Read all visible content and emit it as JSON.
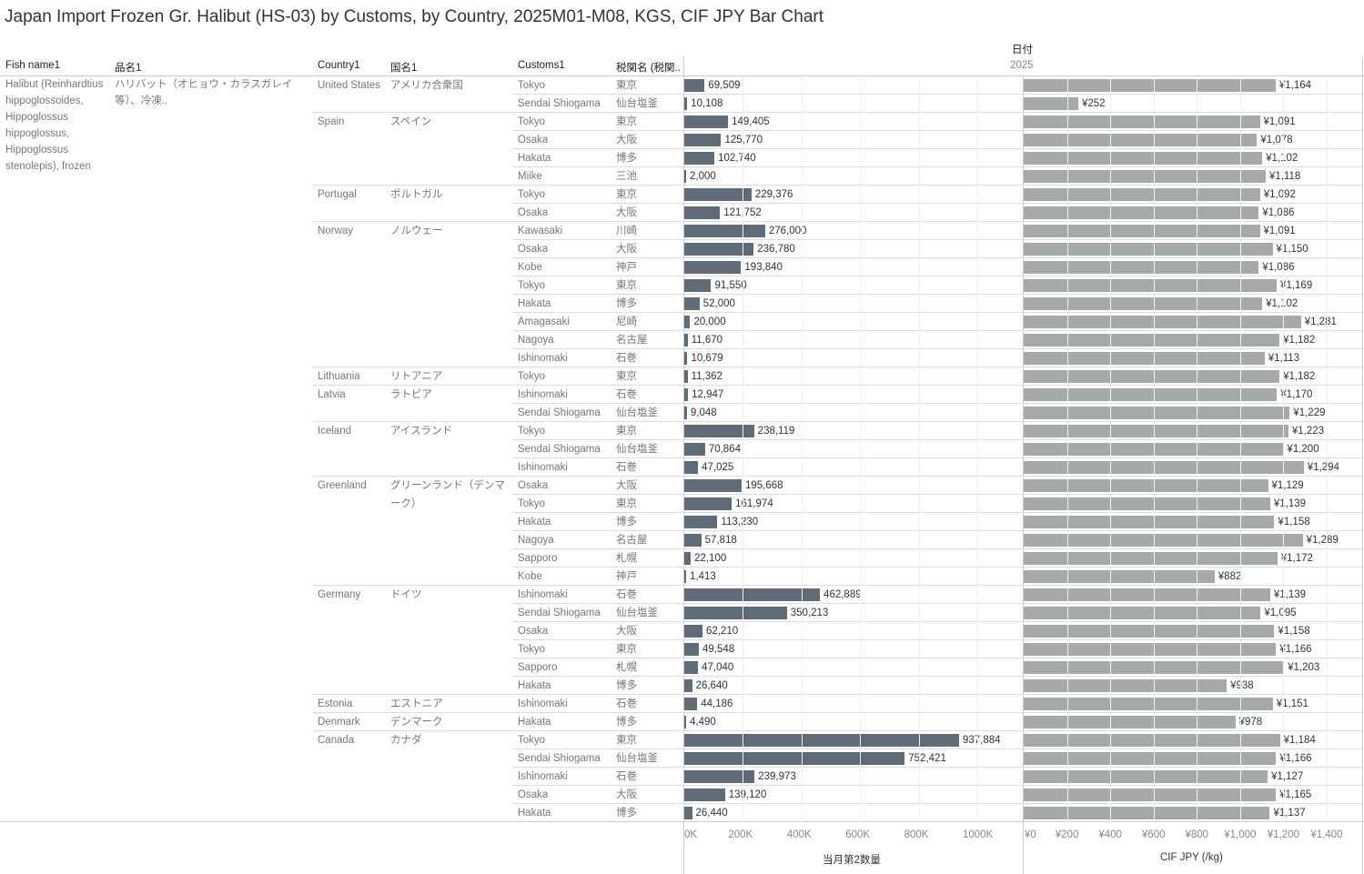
{
  "title": "Japan Import Frozen Gr. Halibut (HS-03) by Customs, by Country, 2025M01-M08, KGS, CIF JPY Bar Chart",
  "headers": {
    "fish": "Fish name1",
    "hinmei": "品名1",
    "country": "Country1",
    "kokumei": "国名1",
    "customs": "Customs1",
    "zeikan": "税関名 (税関..",
    "date": "日付",
    "year": "2025"
  },
  "fish_name": "Halibut (Reinhardtius hippoglossoides, Hippoglossus hippoglossus, Hippoglossus stenolepis), frozen",
  "hinmei": "ハリバット（オヒョウ・カラスガレイ等）、冷凍..",
  "colors": {
    "qty_bar": "#5f6b76",
    "price_bar": "#a5a9aa"
  },
  "chart_data": [
    {
      "type": "bar",
      "xlabel": "当月第2数量",
      "ticks": [
        "0K",
        "200K",
        "400K",
        "600K",
        "800K",
        "1000K"
      ],
      "xlim": [
        0,
        1150000
      ]
    },
    {
      "type": "bar",
      "xlabel": "CIF JPY (/kg)",
      "ticks": [
        "¥0",
        "¥200",
        "¥400",
        "¥600",
        "¥800",
        "¥1,000",
        "¥1,200",
        "¥1,400"
      ],
      "xlim": [
        0,
        1560
      ]
    }
  ],
  "countries": [
    {
      "name": "United States",
      "jp": "アメリカ合衆国",
      "rows": [
        [
          "Tokyo",
          "東京",
          69509,
          1164
        ],
        [
          "Sendai Shiogama",
          "仙台塩釜",
          10108,
          252
        ]
      ]
    },
    {
      "name": "Spain",
      "jp": "スペイン",
      "rows": [
        [
          "Tokyo",
          "東京",
          149405,
          1091
        ],
        [
          "Osaka",
          "大阪",
          125770,
          1078
        ],
        [
          "Hakata",
          "博多",
          102740,
          1102
        ],
        [
          "Miike",
          "三池",
          2000,
          1118
        ]
      ]
    },
    {
      "name": "Portugal",
      "jp": "ポルトガル",
      "rows": [
        [
          "Tokyo",
          "東京",
          229376,
          1092
        ],
        [
          "Osaka",
          "大阪",
          121752,
          1086
        ]
      ]
    },
    {
      "name": "Norway",
      "jp": "ノルウェー",
      "rows": [
        [
          "Kawasaki",
          "川崎",
          276000,
          1091
        ],
        [
          "Osaka",
          "大阪",
          236780,
          1150
        ],
        [
          "Kobe",
          "神戸",
          193840,
          1086
        ],
        [
          "Tokyo",
          "東京",
          91550,
          1169
        ],
        [
          "Hakata",
          "博多",
          52000,
          1102
        ],
        [
          "Amagasaki",
          "尼崎",
          20000,
          1281
        ],
        [
          "Nagoya",
          "名古屋",
          11670,
          1182
        ],
        [
          "Ishinomaki",
          "石巻",
          10679,
          1113
        ]
      ]
    },
    {
      "name": "Lithuania",
      "jp": "リトアニア",
      "rows": [
        [
          "Tokyo",
          "東京",
          11362,
          1182
        ]
      ]
    },
    {
      "name": "Latvia",
      "jp": "ラトビア",
      "rows": [
        [
          "Ishinomaki",
          "石巻",
          12947,
          1170
        ],
        [
          "Sendai Shiogama",
          "仙台塩釜",
          9048,
          1229
        ]
      ]
    },
    {
      "name": "Iceland",
      "jp": "アイスランド",
      "rows": [
        [
          "Tokyo",
          "東京",
          238119,
          1223
        ],
        [
          "Sendai Shiogama",
          "仙台塩釜",
          70864,
          1200
        ],
        [
          "Ishinomaki",
          "石巻",
          47025,
          1294
        ]
      ]
    },
    {
      "name": "Greenland",
      "jp": "グリーンランド（デンマーク）",
      "rows": [
        [
          "Osaka",
          "大阪",
          195668,
          1129
        ],
        [
          "Tokyo",
          "東京",
          161974,
          1139
        ],
        [
          "Hakata",
          "博多",
          113230,
          1158
        ],
        [
          "Nagoya",
          "名古屋",
          57818,
          1289
        ],
        [
          "Sapporo",
          "札幌",
          22100,
          1172
        ],
        [
          "Kobe",
          "神戸",
          1413,
          882
        ]
      ]
    },
    {
      "name": "Germany",
      "jp": "ドイツ",
      "rows": [
        [
          "Ishinomaki",
          "石巻",
          462889,
          1139
        ],
        [
          "Sendai Shiogama",
          "仙台塩釜",
          350213,
          1095
        ],
        [
          "Osaka",
          "大阪",
          62210,
          1158
        ],
        [
          "Tokyo",
          "東京",
          49548,
          1166
        ],
        [
          "Sapporo",
          "札幌",
          47040,
          1203
        ],
        [
          "Hakata",
          "博多",
          26640,
          938
        ]
      ]
    },
    {
      "name": "Estonia",
      "jp": "エストニア",
      "rows": [
        [
          "Ishinomaki",
          "石巻",
          44186,
          1151
        ]
      ]
    },
    {
      "name": "Denmark",
      "jp": "デンマーク",
      "rows": [
        [
          "Hakata",
          "博多",
          4490,
          978
        ]
      ]
    },
    {
      "name": "Canada",
      "jp": "カナダ",
      "rows": [
        [
          "Tokyo",
          "東京",
          937884,
          1184
        ],
        [
          "Sendai Shiogama",
          "仙台塩釜",
          752421,
          1166
        ],
        [
          "Ishinomaki",
          "石巻",
          239973,
          1127
        ],
        [
          "Osaka",
          "大阪",
          139120,
          1165
        ],
        [
          "Hakata",
          "博多",
          26440,
          1137
        ]
      ]
    }
  ]
}
